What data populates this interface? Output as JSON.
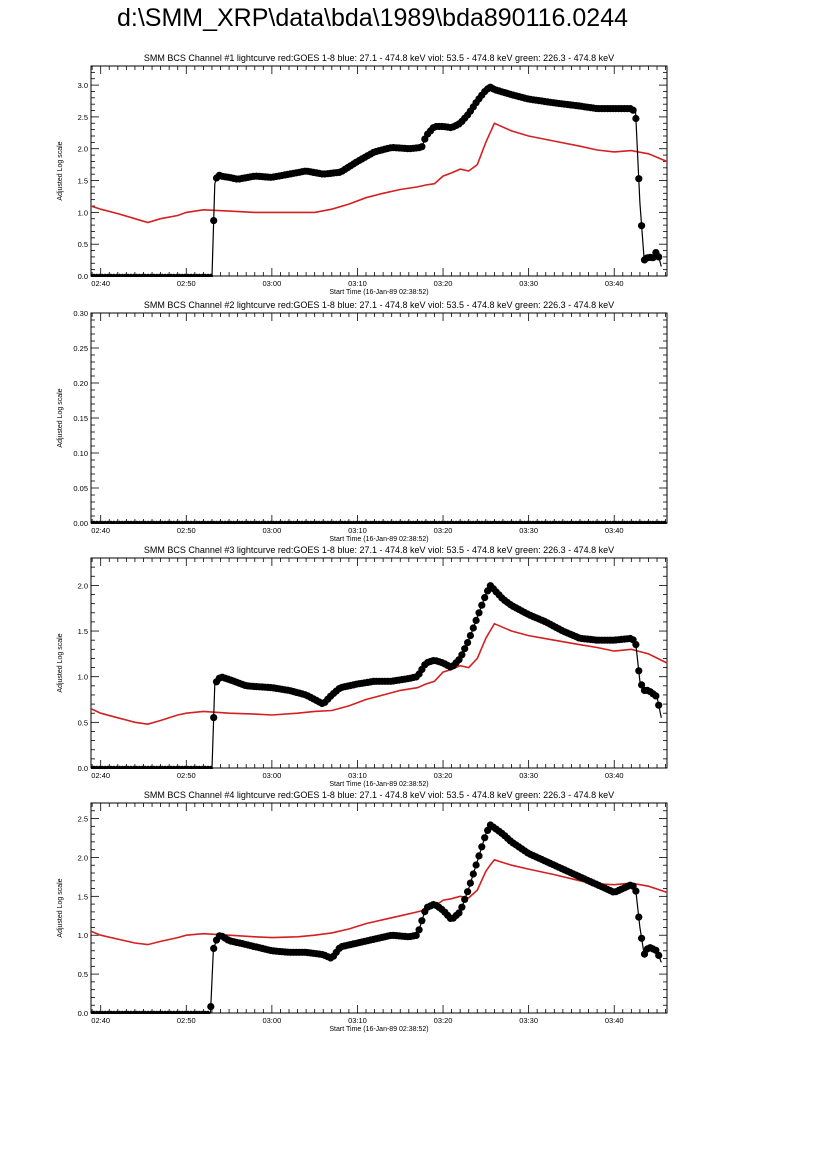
{
  "page": {
    "title": "d:\\SMM_XRP\\data\\bda\\1989\\bda890116.0244"
  },
  "colors": {
    "goes": "#d42020",
    "bcs": "#000000",
    "axis": "#000000"
  },
  "chart_data": [
    {
      "type": "line",
      "title": "SMM BCS Channel #1 lightcurve  red:GOES 1-8  blue: 27.1 - 474.8 keV  viol: 53.5 - 474.8 keV  green: 226.3 - 474.8 keV",
      "xlabel": "Start Time (16-Jan-89 02:38:52)",
      "ylabel": "Adjusted Log scale",
      "xlim": [
        "02:38:52",
        "03:46:10"
      ],
      "ylim": [
        0,
        3.3
      ],
      "x_ticks": [
        "02:40",
        "02:50",
        "03:00",
        "03:10",
        "03:20",
        "03:30",
        "03:40"
      ],
      "y_ticks": [
        "0.0",
        "0.5",
        "1.0",
        "1.5",
        "2.0",
        "2.5",
        "3.0"
      ],
      "series": [
        {
          "color": "#d42020",
          "x": [
            "02:38:52",
            "02:40:00",
            "02:42:00",
            "02:44:00",
            "02:45:30",
            "02:47:00",
            "02:49:00",
            "02:50:00",
            "02:52:00",
            "02:55:00",
            "02:58:00",
            "03:00:00",
            "03:03:00",
            "03:05:00",
            "03:07:00",
            "03:09:00",
            "03:11:00",
            "03:13:00",
            "03:15:00",
            "03:17:00",
            "03:18:00",
            "03:19:00",
            "03:20:00",
            "03:21:00",
            "03:22:00",
            "03:23:00",
            "03:24:00",
            "03:25:00",
            "03:25:30",
            "03:26:00",
            "03:28:00",
            "03:30:00",
            "03:33:00",
            "03:36:00",
            "03:38:00",
            "03:40:00",
            "03:42:00",
            "03:44:00",
            "03:46:10"
          ],
          "y": [
            1.1,
            1.05,
            0.98,
            0.9,
            0.84,
            0.9,
            0.95,
            1.0,
            1.04,
            1.02,
            1.0,
            1.0,
            1.0,
            1.0,
            1.05,
            1.13,
            1.23,
            1.3,
            1.36,
            1.4,
            1.43,
            1.45,
            1.57,
            1.62,
            1.68,
            1.65,
            1.75,
            2.1,
            2.25,
            2.4,
            2.28,
            2.2,
            2.12,
            2.04,
            1.98,
            1.95,
            1.97,
            1.92,
            1.8
          ]
        },
        {
          "color": "#000000",
          "x": [
            "02:38:52",
            "02:53:00",
            "02:53:20",
            "02:53:40",
            "02:54:00",
            "02:55:00",
            "02:56:00",
            "02:58:00",
            "03:00:00",
            "03:02:00",
            "03:04:00",
            "03:06:00",
            "03:08:00",
            "03:10:00",
            "03:12:00",
            "03:14:00",
            "03:16:00",
            "03:17:30",
            "03:18:00",
            "03:19:00",
            "03:20:00",
            "03:21:00",
            "03:22:00",
            "03:23:00",
            "03:24:00",
            "03:25:00",
            "03:25:30",
            "03:26:00",
            "03:28:00",
            "03:30:00",
            "03:33:00",
            "03:36:00",
            "03:38:00",
            "03:40:00",
            "03:42:00",
            "03:42:30",
            "03:43:00",
            "03:43:30",
            "03:44:00",
            "03:44:30",
            "03:45:00",
            "03:45:30"
          ],
          "y": [
            0.0,
            0.0,
            1.45,
            1.6,
            1.57,
            1.55,
            1.52,
            1.57,
            1.55,
            1.6,
            1.65,
            1.6,
            1.63,
            1.8,
            1.95,
            2.02,
            2.0,
            2.02,
            2.2,
            2.35,
            2.35,
            2.33,
            2.4,
            2.55,
            2.75,
            2.92,
            2.97,
            2.93,
            2.85,
            2.78,
            2.72,
            2.67,
            2.63,
            2.63,
            2.63,
            2.57,
            1.15,
            0.25,
            0.3,
            0.28,
            0.4,
            0.15
          ]
        }
      ]
    },
    {
      "type": "line",
      "title": "SMM BCS Channel #2 lightcurve  red:GOES 1-8  blue: 27.1 - 474.8 keV  viol: 53.5 - 474.8 keV  green: 226.3 - 474.8 keV",
      "xlabel": "Start Time (16-Jan-89 02:38:52)",
      "ylabel": "Adjusted Log scale",
      "xlim": [
        "02:38:52",
        "03:46:10"
      ],
      "ylim": [
        0,
        0.3
      ],
      "x_ticks": [
        "02:40",
        "02:50",
        "03:00",
        "03:10",
        "03:20",
        "03:30",
        "03:40"
      ],
      "y_ticks": [
        "0.00",
        "0.05",
        "0.10",
        "0.15",
        "0.20",
        "0.25",
        "0.30"
      ],
      "series": [
        {
          "color": "#000000",
          "x": [
            "02:38:52",
            "03:46:10"
          ],
          "y": [
            0.0,
            0.0
          ]
        }
      ]
    },
    {
      "type": "line",
      "title": "SMM BCS Channel #3 lightcurve  red:GOES 1-8  blue: 27.1 - 474.8 keV  viol: 53.5 - 474.8 keV  green: 226.3 - 474.8 keV",
      "xlabel": "Start Time (16-Jan-89 02:38:52)",
      "ylabel": "Adjusted Log scale",
      "xlim": [
        "02:38:52",
        "03:46:10"
      ],
      "ylim": [
        0,
        2.3
      ],
      "x_ticks": [
        "02:40",
        "02:50",
        "03:00",
        "03:10",
        "03:20",
        "03:30",
        "03:40"
      ],
      "y_ticks": [
        "0.0",
        "0.5",
        "1.0",
        "1.5",
        "2.0"
      ],
      "series": [
        {
          "color": "#d42020",
          "x": [
            "02:38:52",
            "02:40:00",
            "02:42:00",
            "02:44:00",
            "02:45:30",
            "02:47:00",
            "02:49:00",
            "02:50:00",
            "02:52:00",
            "02:55:00",
            "02:58:00",
            "03:00:00",
            "03:03:00",
            "03:05:00",
            "03:07:00",
            "03:09:00",
            "03:11:00",
            "03:13:00",
            "03:15:00",
            "03:17:00",
            "03:18:00",
            "03:19:00",
            "03:20:00",
            "03:21:00",
            "03:22:00",
            "03:23:00",
            "03:24:00",
            "03:25:00",
            "03:25:30",
            "03:26:00",
            "03:28:00",
            "03:30:00",
            "03:33:00",
            "03:36:00",
            "03:38:00",
            "03:40:00",
            "03:42:00",
            "03:44:00",
            "03:46:10"
          ],
          "y": [
            0.65,
            0.6,
            0.55,
            0.5,
            0.48,
            0.52,
            0.58,
            0.6,
            0.62,
            0.6,
            0.59,
            0.58,
            0.6,
            0.62,
            0.63,
            0.68,
            0.75,
            0.8,
            0.85,
            0.88,
            0.92,
            0.95,
            1.05,
            1.08,
            1.12,
            1.1,
            1.2,
            1.42,
            1.5,
            1.58,
            1.5,
            1.45,
            1.4,
            1.35,
            1.32,
            1.28,
            1.3,
            1.25,
            1.15
          ]
        },
        {
          "color": "#000000",
          "x": [
            "02:38:52",
            "02:53:00",
            "02:53:20",
            "02:54:00",
            "02:55:00",
            "02:57:00",
            "03:00:00",
            "03:02:00",
            "03:04:00",
            "03:05:00",
            "03:06:00",
            "03:07:00",
            "03:08:00",
            "03:10:00",
            "03:12:00",
            "03:14:00",
            "03:16:00",
            "03:17:00",
            "03:18:00",
            "03:19:00",
            "03:20:00",
            "03:21:00",
            "03:22:00",
            "03:23:00",
            "03:24:00",
            "03:25:00",
            "03:25:30",
            "03:26:00",
            "03:27:00",
            "03:28:00",
            "03:30:00",
            "03:32:00",
            "03:34:00",
            "03:36:00",
            "03:38:00",
            "03:40:00",
            "03:42:00",
            "03:42:30",
            "03:43:00",
            "03:43:30",
            "03:44:00",
            "03:45:00",
            "03:45:30"
          ],
          "y": [
            0.0,
            0.0,
            0.92,
            1.0,
            0.97,
            0.9,
            0.88,
            0.85,
            0.8,
            0.75,
            0.7,
            0.8,
            0.88,
            0.92,
            0.95,
            0.95,
            0.98,
            1.0,
            1.15,
            1.18,
            1.15,
            1.1,
            1.2,
            1.4,
            1.65,
            1.9,
            2.0,
            1.95,
            1.85,
            1.78,
            1.68,
            1.6,
            1.5,
            1.42,
            1.4,
            1.4,
            1.42,
            1.38,
            0.95,
            0.85,
            0.85,
            0.78,
            0.55
          ]
        }
      ]
    },
    {
      "type": "line",
      "title": "SMM BCS Channel #4 lightcurve  red:GOES 1-8  blue: 27.1 - 474.8 keV  viol: 53.5 - 474.8 keV  green: 226.3 - 474.8 keV",
      "xlabel": "Start Time (16-Jan-89 02:38:52)",
      "ylabel": "Adjusted Log scale",
      "xlim": [
        "02:38:52",
        "03:46:10"
      ],
      "ylim": [
        0,
        2.7
      ],
      "x_ticks": [
        "02:40",
        "02:50",
        "03:00",
        "03:10",
        "03:20",
        "03:30",
        "03:40"
      ],
      "y_ticks": [
        "0.0",
        "0.5",
        "1.0",
        "1.5",
        "2.0",
        "2.5"
      ],
      "series": [
        {
          "color": "#d42020",
          "x": [
            "02:38:52",
            "02:40:00",
            "02:42:00",
            "02:44:00",
            "02:45:30",
            "02:47:00",
            "02:49:00",
            "02:50:00",
            "02:52:00",
            "02:55:00",
            "02:58:00",
            "03:00:00",
            "03:03:00",
            "03:05:00",
            "03:07:00",
            "03:09:00",
            "03:11:00",
            "03:13:00",
            "03:15:00",
            "03:17:00",
            "03:18:00",
            "03:19:00",
            "03:20:00",
            "03:21:00",
            "03:22:00",
            "03:23:00",
            "03:24:00",
            "03:25:00",
            "03:25:30",
            "03:26:00",
            "03:28:00",
            "03:30:00",
            "03:33:00",
            "03:36:00",
            "03:38:00",
            "03:40:00",
            "03:42:00",
            "03:44:00",
            "03:46:10"
          ],
          "y": [
            1.05,
            1.0,
            0.95,
            0.9,
            0.88,
            0.92,
            0.97,
            1.0,
            1.02,
            1.0,
            0.98,
            0.97,
            0.98,
            1.0,
            1.03,
            1.08,
            1.15,
            1.2,
            1.25,
            1.3,
            1.33,
            1.37,
            1.45,
            1.47,
            1.5,
            1.48,
            1.58,
            1.82,
            1.9,
            1.97,
            1.9,
            1.85,
            1.78,
            1.7,
            1.66,
            1.65,
            1.67,
            1.63,
            1.55
          ]
        },
        {
          "color": "#000000",
          "x": [
            "02:38:52",
            "02:52:50",
            "02:53:10",
            "02:53:40",
            "02:54:00",
            "02:55:00",
            "02:57:00",
            "03:00:00",
            "03:02:00",
            "03:04:00",
            "03:06:00",
            "03:07:00",
            "03:08:00",
            "03:10:00",
            "03:12:00",
            "03:14:00",
            "03:16:00",
            "03:17:00",
            "03:18:00",
            "03:19:00",
            "03:20:00",
            "03:21:00",
            "03:22:00",
            "03:23:00",
            "03:24:00",
            "03:25:00",
            "03:25:30",
            "03:26:00",
            "03:27:00",
            "03:28:00",
            "03:30:00",
            "03:32:00",
            "03:34:00",
            "03:36:00",
            "03:38:00",
            "03:40:00",
            "03:42:00",
            "03:42:30",
            "03:43:00",
            "03:43:30",
            "03:44:00",
            "03:45:00",
            "03:45:30"
          ],
          "y": [
            0.0,
            0.0,
            0.82,
            0.98,
            1.0,
            0.93,
            0.88,
            0.8,
            0.78,
            0.78,
            0.75,
            0.7,
            0.85,
            0.9,
            0.95,
            1.0,
            0.98,
            1.0,
            1.35,
            1.4,
            1.32,
            1.2,
            1.3,
            1.6,
            1.95,
            2.3,
            2.42,
            2.38,
            2.3,
            2.2,
            2.05,
            1.95,
            1.85,
            1.75,
            1.65,
            1.55,
            1.65,
            1.6,
            1.1,
            0.75,
            0.85,
            0.8,
            0.65
          ]
        }
      ]
    }
  ]
}
